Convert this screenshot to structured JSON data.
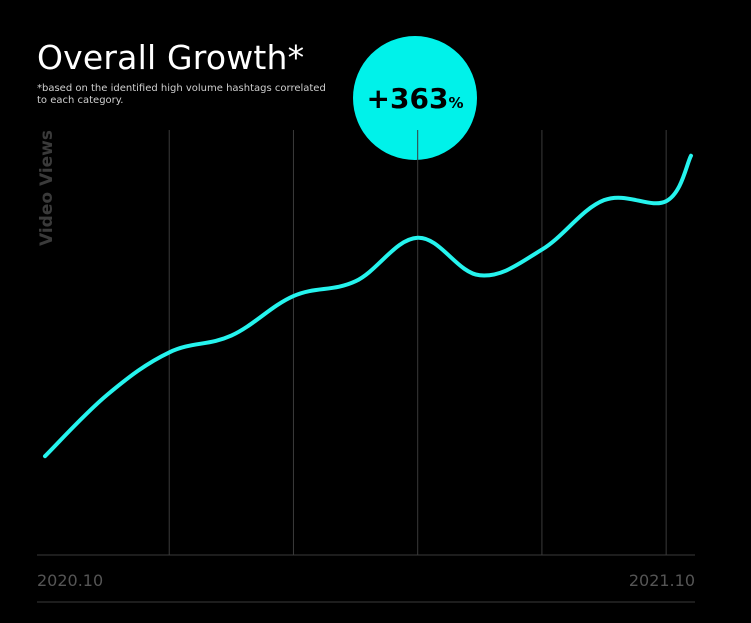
{
  "header": {
    "title": "Overall Growth*",
    "subtitle": "*based on the identified high volume hashtags correlated to each category."
  },
  "badge": {
    "value": "+363",
    "unit": "%",
    "color": "#00F2EA"
  },
  "chart_data": {
    "type": "line",
    "ylabel": "Video Views",
    "x_start_label": "2020.10",
    "x_end_label": "2021.10",
    "line_color": "#25F4EE",
    "x": [
      0,
      0.5,
      1,
      1.5,
      2,
      2.5,
      3,
      3.5,
      4,
      4.5,
      5,
      5.2
    ],
    "values": [
      100,
      162,
      205,
      222,
      262,
      277,
      321,
      283,
      309,
      359,
      358,
      404
    ],
    "ylim": [
      0,
      430
    ],
    "grid": "vertical"
  }
}
